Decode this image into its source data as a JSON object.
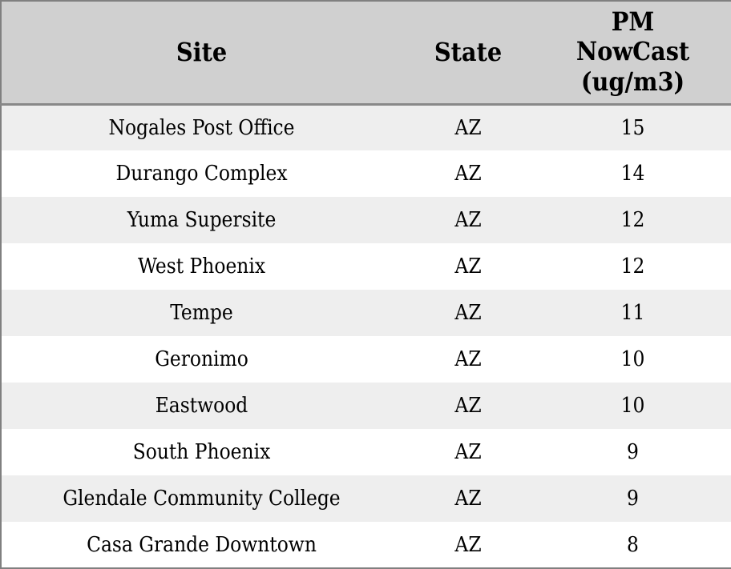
{
  "chart_data": {
    "type": "table",
    "columns": [
      "Site",
      "State",
      "PM NowCast (ug/m3)"
    ],
    "rows": [
      [
        "Nogales Post Office",
        "AZ",
        15
      ],
      [
        "Durango Complex",
        "AZ",
        14
      ],
      [
        "Yuma Supersite",
        "AZ",
        12
      ],
      [
        "West Phoenix",
        "AZ",
        12
      ],
      [
        "Tempe",
        "AZ",
        11
      ],
      [
        "Geronimo",
        "AZ",
        10
      ],
      [
        "Eastwood",
        "AZ",
        10
      ],
      [
        "South Phoenix",
        "AZ",
        9
      ],
      [
        "Glendale Community College",
        "AZ",
        9
      ],
      [
        "Casa Grande Downtown",
        "AZ",
        8
      ]
    ],
    "layout": {
      "header_align": "center",
      "cell_align": "center",
      "alternating_rows": true
    }
  },
  "colors": {
    "header_bg": "#d0d0d0",
    "row_odd_bg": "#eeeeee",
    "row_even_bg": "#ffffff",
    "outer_border": "#808080",
    "header_divider": "#888888",
    "text": "#000000"
  }
}
